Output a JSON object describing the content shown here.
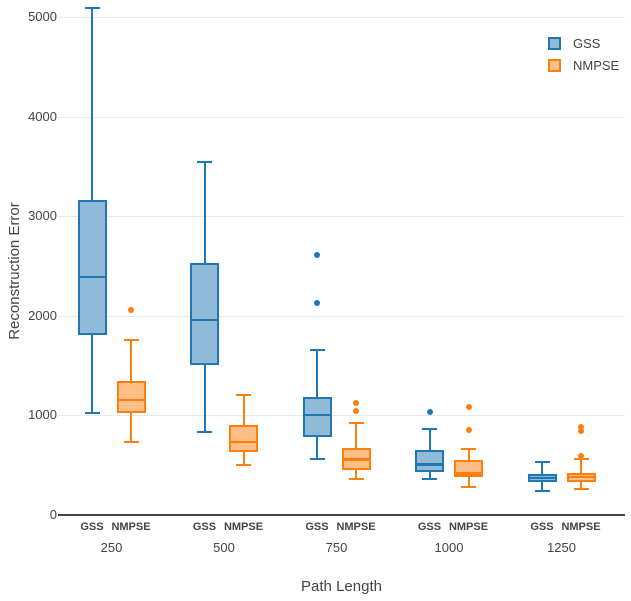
{
  "chart_data": {
    "type": "box",
    "title": "",
    "xlabel": "Path Length",
    "ylabel": "Reconstruction Error",
    "ylim": [
      0,
      5200
    ],
    "ytick_values": [
      0,
      1000,
      2000,
      3000,
      4000,
      5000
    ],
    "ytick_labels": [
      "0",
      "1000",
      "2000",
      "3000",
      "4000",
      "5000"
    ],
    "grid": true,
    "legend_position": "top-right",
    "categories": [
      "250",
      "500",
      "750",
      "1000",
      "1250"
    ],
    "series": [
      {
        "name": "GSS",
        "color": "#1f77b4",
        "fill": "#8fbbd9",
        "boxes": [
          {
            "low": 1025,
            "q1": 1810,
            "median": 2390,
            "q3": 3165,
            "high": 5090,
            "outliers": []
          },
          {
            "low": 835,
            "q1": 1505,
            "median": 1960,
            "q3": 2530,
            "high": 3540,
            "outliers": []
          },
          {
            "low": 560,
            "q1": 785,
            "median": 1005,
            "q3": 1185,
            "high": 1660,
            "outliers": [
              2615,
              2130
            ]
          },
          {
            "low": 360,
            "q1": 430,
            "median": 510,
            "q3": 655,
            "high": 865,
            "outliers": [
              1035
            ]
          },
          {
            "low": 240,
            "q1": 330,
            "median": 370,
            "q3": 410,
            "high": 530,
            "outliers": []
          }
        ]
      },
      {
        "name": "NMPSE",
        "color": "#ff7f0e",
        "fill": "#ffbf86",
        "boxes": [
          {
            "low": 735,
            "q1": 1025,
            "median": 1155,
            "q3": 1345,
            "high": 1760,
            "outliers": [
              2060
            ]
          },
          {
            "low": 500,
            "q1": 635,
            "median": 735,
            "q3": 905,
            "high": 1205,
            "outliers": []
          },
          {
            "low": 360,
            "q1": 450,
            "median": 560,
            "q3": 675,
            "high": 925,
            "outliers": [
              1125,
              1045
            ]
          },
          {
            "low": 280,
            "q1": 380,
            "median": 415,
            "q3": 550,
            "high": 665,
            "outliers": [
              1085,
              855
            ]
          },
          {
            "low": 260,
            "q1": 330,
            "median": 380,
            "q3": 420,
            "high": 560,
            "outliers": [
              885,
              840,
              595
            ]
          }
        ]
      }
    ]
  }
}
